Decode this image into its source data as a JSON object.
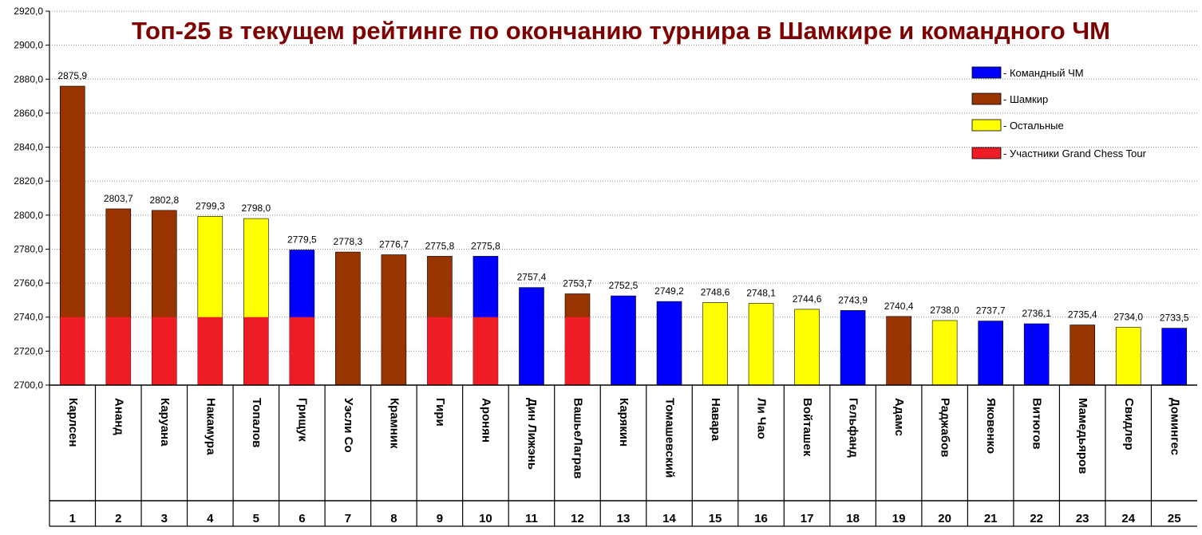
{
  "chart_data": {
    "type": "bar",
    "title": "Топ-25 в текущем рейтинге по окончанию турнира в Шамкире и командного ЧМ",
    "ylim": [
      2700,
      2920
    ],
    "ytick_step": 20,
    "ytick_labels": [
      "2700,0",
      "2720,0",
      "2740,0",
      "2760,0",
      "2780,0",
      "2800,0",
      "2820,0",
      "2840,0",
      "2860,0",
      "2880,0",
      "2900,0",
      "2920,0"
    ],
    "grid": true,
    "legend_position": "top-right",
    "legend": [
      {
        "key": "team",
        "label": "- Командный ЧМ",
        "color": "#0000ff"
      },
      {
        "key": "shamkir",
        "label": "- Шамкир",
        "color": "#993300"
      },
      {
        "key": "other",
        "label": "- Остальные",
        "color": "#ffff00"
      },
      {
        "key": "gct",
        "label": "- Участники Grand Chess Tour",
        "color": "#ee1c24"
      }
    ],
    "gct_level": 2740,
    "players": [
      {
        "rank": "1",
        "name": "Карлсен",
        "value": 2875.9,
        "label": "2875,9",
        "group": "shamkir",
        "gct": true
      },
      {
        "rank": "2",
        "name": "Ананд",
        "value": 2803.7,
        "label": "2803,7",
        "group": "shamkir",
        "gct": true
      },
      {
        "rank": "3",
        "name": "Каруана",
        "value": 2802.8,
        "label": "2802,8",
        "group": "shamkir",
        "gct": true
      },
      {
        "rank": "4",
        "name": "Накамура",
        "value": 2799.3,
        "label": "2799,3",
        "group": "other",
        "gct": true
      },
      {
        "rank": "5",
        "name": "Топалов",
        "value": 2798.0,
        "label": "2798,0",
        "group": "other",
        "gct": true
      },
      {
        "rank": "6",
        "name": "Грищук",
        "value": 2779.5,
        "label": "2779,5",
        "group": "team",
        "gct": true
      },
      {
        "rank": "7",
        "name": "Уэсли Со",
        "value": 2778.3,
        "label": "2778,3",
        "group": "shamkir",
        "gct": false
      },
      {
        "rank": "8",
        "name": "Крамник",
        "value": 2776.7,
        "label": "2776,7",
        "group": "shamkir",
        "gct": false
      },
      {
        "rank": "9",
        "name": "Гири",
        "value": 2775.8,
        "label": "2775,8",
        "group": "shamkir",
        "gct": true
      },
      {
        "rank": "10",
        "name": "Аронян",
        "value": 2775.8,
        "label": "2775,8",
        "group": "team",
        "gct": true
      },
      {
        "rank": "11",
        "name": "Дин Лижэнь",
        "value": 2757.4,
        "label": "2757,4",
        "group": "team",
        "gct": false
      },
      {
        "rank": "12",
        "name": "ВашьеЛаграв",
        "value": 2753.7,
        "label": "2753,7",
        "group": "shamkir",
        "gct": true
      },
      {
        "rank": "13",
        "name": "Карякин",
        "value": 2752.5,
        "label": "2752,5",
        "group": "team",
        "gct": false
      },
      {
        "rank": "14",
        "name": "Томашевский",
        "value": 2749.2,
        "label": "2749,2",
        "group": "team",
        "gct": false
      },
      {
        "rank": "15",
        "name": "Навара",
        "value": 2748.6,
        "label": "2748,6",
        "group": "other",
        "gct": false
      },
      {
        "rank": "16",
        "name": "Ли Чао",
        "value": 2748.1,
        "label": "2748,1",
        "group": "other",
        "gct": false
      },
      {
        "rank": "17",
        "name": "Войташек",
        "value": 2744.6,
        "label": "2744,6",
        "group": "other",
        "gct": false
      },
      {
        "rank": "18",
        "name": "Гельфанд",
        "value": 2743.9,
        "label": "2743,9",
        "group": "team",
        "gct": false
      },
      {
        "rank": "19",
        "name": "Адамс",
        "value": 2740.4,
        "label": "2740,4",
        "group": "shamkir",
        "gct": false
      },
      {
        "rank": "20",
        "name": "Раджабов",
        "value": 2738.0,
        "label": "2738,0",
        "group": "other",
        "gct": false
      },
      {
        "rank": "21",
        "name": "Яковенко",
        "value": 2737.7,
        "label": "2737,7",
        "group": "team",
        "gct": false
      },
      {
        "rank": "22",
        "name": "Витюгов",
        "value": 2736.1,
        "label": "2736,1",
        "group": "team",
        "gct": false
      },
      {
        "rank": "23",
        "name": "Мамедьяров",
        "value": 2735.4,
        "label": "2735,4",
        "group": "shamkir",
        "gct": false
      },
      {
        "rank": "24",
        "name": "Свидлер",
        "value": 2734.0,
        "label": "2734,0",
        "group": "other",
        "gct": false
      },
      {
        "rank": "25",
        "name": "Домингес",
        "value": 2733.5,
        "label": "2733,5",
        "group": "team",
        "gct": false
      }
    ]
  }
}
